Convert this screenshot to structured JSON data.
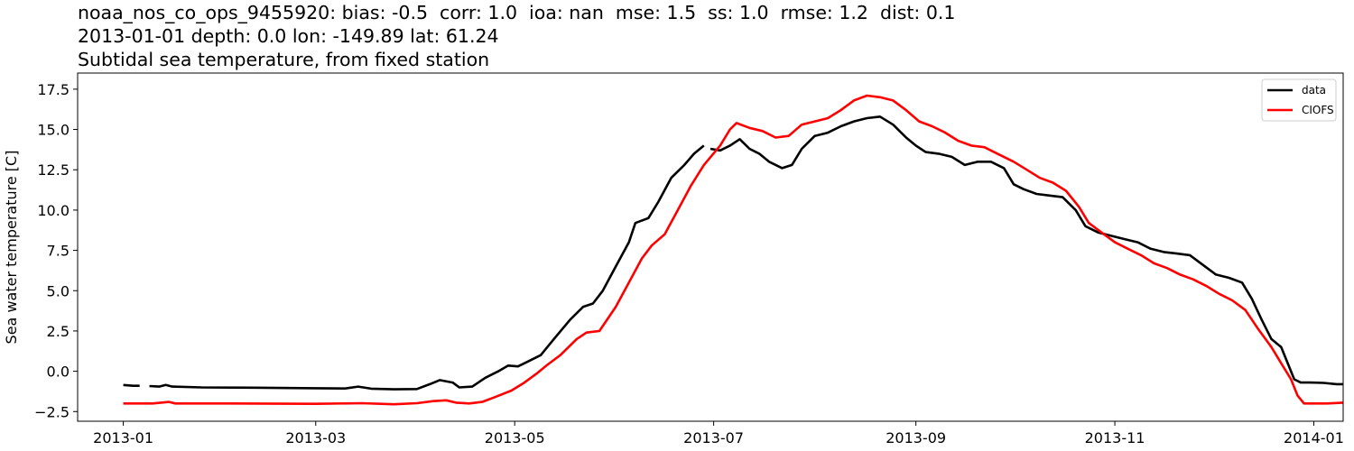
{
  "title_lines": [
    "noaa_nos_co_ops_9455920: bias: -0.5  corr: 1.0  ioa: nan  mse: 1.5  ss: 1.0  rmse: 1.2  dist: 0.1",
    "2013-01-01 depth: 0.0 lon: -149.89 lat: 61.24",
    "Subtidal sea temperature, from fixed station"
  ],
  "chart_data": {
    "type": "line",
    "title": "noaa_nos_co_ops_9455920: bias: -0.5  corr: 1.0  ioa: nan  mse: 1.5  ss: 1.0  rmse: 1.2  dist: 0.1 / 2013-01-01 depth: 0.0 lon: -149.89 lat: 61.24 / Subtidal sea temperature, from fixed station",
    "xlabel": "",
    "ylabel": "Sea water temperature [C]",
    "xlim": [
      "2012-12-18",
      "2014-01-10"
    ],
    "ylim": [
      -3.1,
      18.5
    ],
    "x_ticks": [
      "2013-01-01",
      "2013-03-01",
      "2013-05-01",
      "2013-07-01",
      "2013-09-01",
      "2013-11-01",
      "2014-01-01"
    ],
    "x_tick_labels": [
      "2013-01",
      "2013-03",
      "2013-05",
      "2013-07",
      "2013-09",
      "2013-11",
      "2014-01"
    ],
    "y_ticks": [
      -2.5,
      0.0,
      2.5,
      5.0,
      7.5,
      10.0,
      12.5,
      15.0,
      17.5
    ],
    "y_tick_labels": [
      "−2.5",
      "0.0",
      "2.5",
      "5.0",
      "7.5",
      "10.0",
      "12.5",
      "15.0",
      "17.5"
    ],
    "grid": false,
    "legend_position": "top-right",
    "series": [
      {
        "name": "data",
        "color": "#000000",
        "segments": [
          [
            [
              "2013-01-01",
              -0.85
            ],
            [
              "2013-01-04",
              -0.9
            ],
            [
              "2013-01-06",
              -0.9
            ]
          ],
          [
            [
              "2013-01-09",
              -0.92
            ],
            [
              "2013-01-12",
              -0.95
            ],
            [
              "2013-01-14",
              -0.85
            ],
            [
              "2013-01-16",
              -0.95
            ],
            [
              "2013-01-25",
              -1.0
            ],
            [
              "2013-02-10",
              -1.02
            ],
            [
              "2013-03-01",
              -1.05
            ],
            [
              "2013-03-10",
              -1.07
            ],
            [
              "2013-03-14",
              -0.95
            ],
            [
              "2013-03-18",
              -1.08
            ],
            [
              "2013-03-25",
              -1.12
            ],
            [
              "2013-04-01",
              -1.1
            ],
            [
              "2013-04-05",
              -0.8
            ],
            [
              "2013-04-08",
              -0.55
            ],
            [
              "2013-04-12",
              -0.7
            ],
            [
              "2013-04-14",
              -1.0
            ],
            [
              "2013-04-18",
              -0.95
            ],
            [
              "2013-04-22",
              -0.4
            ],
            [
              "2013-04-26",
              0.0
            ],
            [
              "2013-04-29",
              0.35
            ],
            [
              "2013-05-02",
              0.3
            ],
            [
              "2013-05-05",
              0.6
            ],
            [
              "2013-05-09",
              1.0
            ],
            [
              "2013-05-13",
              2.0
            ],
            [
              "2013-05-18",
              3.2
            ],
            [
              "2013-05-22",
              4.0
            ],
            [
              "2013-05-25",
              4.2
            ],
            [
              "2013-05-28",
              5.0
            ],
            [
              "2013-06-01",
              6.5
            ],
            [
              "2013-06-05",
              8.0
            ],
            [
              "2013-06-07",
              9.2
            ],
            [
              "2013-06-11",
              9.5
            ],
            [
              "2013-06-14",
              10.5
            ],
            [
              "2013-06-18",
              12.0
            ],
            [
              "2013-06-22",
              12.8
            ],
            [
              "2013-06-25",
              13.5
            ],
            [
              "2013-06-28",
              14.0
            ]
          ],
          [
            [
              "2013-06-30",
              13.8
            ],
            [
              "2013-07-03",
              13.7
            ],
            [
              "2013-07-06",
              14.0
            ],
            [
              "2013-07-09",
              14.4
            ],
            [
              "2013-07-12",
              13.8
            ],
            [
              "2013-07-15",
              13.5
            ],
            [
              "2013-07-18",
              13.0
            ],
            [
              "2013-07-22",
              12.6
            ],
            [
              "2013-07-25",
              12.8
            ],
            [
              "2013-07-28",
              13.8
            ],
            [
              "2013-08-01",
              14.6
            ],
            [
              "2013-08-05",
              14.8
            ],
            [
              "2013-08-09",
              15.2
            ],
            [
              "2013-08-13",
              15.5
            ],
            [
              "2013-08-17",
              15.7
            ],
            [
              "2013-08-21",
              15.8
            ],
            [
              "2013-08-25",
              15.3
            ],
            [
              "2013-08-29",
              14.5
            ],
            [
              "2013-09-01",
              14.0
            ],
            [
              "2013-09-04",
              13.6
            ],
            [
              "2013-09-08",
              13.5
            ],
            [
              "2013-09-12",
              13.3
            ],
            [
              "2013-09-16",
              12.8
            ],
            [
              "2013-09-20",
              13.0
            ],
            [
              "2013-09-24",
              13.0
            ],
            [
              "2013-09-28",
              12.6
            ],
            [
              "2013-10-01",
              11.6
            ],
            [
              "2013-10-04",
              11.3
            ],
            [
              "2013-10-08",
              11.0
            ],
            [
              "2013-10-12",
              10.9
            ],
            [
              "2013-10-16",
              10.8
            ],
            [
              "2013-10-20",
              10.0
            ],
            [
              "2013-10-23",
              9.0
            ],
            [
              "2013-10-27",
              8.6
            ],
            [
              "2013-10-31",
              8.4
            ],
            [
              "2013-11-04",
              8.2
            ],
            [
              "2013-11-08",
              8.0
            ],
            [
              "2013-11-12",
              7.6
            ],
            [
              "2013-11-16",
              7.4
            ],
            [
              "2013-11-20",
              7.3
            ],
            [
              "2013-11-24",
              7.2
            ],
            [
              "2013-11-28",
              6.6
            ],
            [
              "2013-12-02",
              6.0
            ],
            [
              "2013-12-06",
              5.8
            ],
            [
              "2013-12-10",
              5.5
            ],
            [
              "2013-12-13",
              4.5
            ],
            [
              "2013-12-16",
              3.2
            ],
            [
              "2013-12-19",
              2.0
            ],
            [
              "2013-12-22",
              1.5
            ],
            [
              "2013-12-24",
              0.5
            ],
            [
              "2013-12-26",
              -0.5
            ],
            [
              "2013-12-28",
              -0.7
            ],
            [
              "2013-12-31",
              -0.7
            ],
            [
              "2014-01-04",
              -0.72
            ],
            [
              "2014-01-08",
              -0.8
            ],
            [
              "2014-01-12",
              -0.8
            ],
            [
              "2014-01-16",
              -0.75
            ],
            [
              "2014-01-22",
              -0.8
            ],
            [
              "2014-01-28",
              -0.82
            ]
          ]
        ]
      },
      {
        "name": "CIOFS",
        "color": "#ff0000",
        "segments": [
          [
            [
              "2013-01-01",
              -2.0
            ],
            [
              "2013-01-10",
              -2.0
            ],
            [
              "2013-01-15",
              -1.9
            ],
            [
              "2013-01-17",
              -2.0
            ],
            [
              "2013-02-01",
              -2.0
            ],
            [
              "2013-03-01",
              -2.02
            ],
            [
              "2013-03-15",
              -1.98
            ],
            [
              "2013-03-25",
              -2.05
            ],
            [
              "2013-04-01",
              -1.98
            ],
            [
              "2013-04-06",
              -1.85
            ],
            [
              "2013-04-10",
              -1.8
            ],
            [
              "2013-04-13",
              -1.95
            ],
            [
              "2013-04-17",
              -2.0
            ],
            [
              "2013-04-21",
              -1.9
            ],
            [
              "2013-04-25",
              -1.6
            ],
            [
              "2013-04-30",
              -1.2
            ],
            [
              "2013-05-04",
              -0.7
            ],
            [
              "2013-05-08",
              -0.1
            ],
            [
              "2013-05-11",
              0.4
            ],
            [
              "2013-05-15",
              1.0
            ],
            [
              "2013-05-20",
              2.0
            ],
            [
              "2013-05-23",
              2.4
            ],
            [
              "2013-05-27",
              2.5
            ],
            [
              "2013-06-01",
              4.0
            ],
            [
              "2013-06-05",
              5.5
            ],
            [
              "2013-06-09",
              7.0
            ],
            [
              "2013-06-12",
              7.8
            ],
            [
              "2013-06-16",
              8.5
            ],
            [
              "2013-06-20",
              10.0
            ],
            [
              "2013-06-24",
              11.5
            ],
            [
              "2013-06-28",
              12.8
            ],
            [
              "2013-07-03",
              14.0
            ],
            [
              "2013-07-06",
              15.0
            ],
            [
              "2013-07-08",
              15.4
            ],
            [
              "2013-07-12",
              15.1
            ],
            [
              "2013-07-16",
              14.9
            ],
            [
              "2013-07-20",
              14.5
            ],
            [
              "2013-07-24",
              14.6
            ],
            [
              "2013-07-28",
              15.3
            ],
            [
              "2013-08-01",
              15.5
            ],
            [
              "2013-08-05",
              15.7
            ],
            [
              "2013-08-09",
              16.2
            ],
            [
              "2013-08-13",
              16.8
            ],
            [
              "2013-08-17",
              17.1
            ],
            [
              "2013-08-21",
              17.0
            ],
            [
              "2013-08-25",
              16.8
            ],
            [
              "2013-08-29",
              16.2
            ],
            [
              "2013-09-02",
              15.5
            ],
            [
              "2013-09-06",
              15.2
            ],
            [
              "2013-09-10",
              14.8
            ],
            [
              "2013-09-14",
              14.3
            ],
            [
              "2013-09-18",
              14.0
            ],
            [
              "2013-09-22",
              13.9
            ],
            [
              "2013-09-26",
              13.5
            ],
            [
              "2013-10-01",
              13.0
            ],
            [
              "2013-10-05",
              12.5
            ],
            [
              "2013-10-09",
              12.0
            ],
            [
              "2013-10-13",
              11.7
            ],
            [
              "2013-10-17",
              11.2
            ],
            [
              "2013-10-21",
              10.2
            ],
            [
              "2013-10-24",
              9.2
            ],
            [
              "2013-10-28",
              8.6
            ],
            [
              "2013-11-01",
              8.0
            ],
            [
              "2013-11-05",
              7.6
            ],
            [
              "2013-11-09",
              7.2
            ],
            [
              "2013-11-13",
              6.7
            ],
            [
              "2013-11-17",
              6.4
            ],
            [
              "2013-11-21",
              6.0
            ],
            [
              "2013-11-25",
              5.7
            ],
            [
              "2013-11-29",
              5.3
            ],
            [
              "2013-12-03",
              4.8
            ],
            [
              "2013-12-07",
              4.4
            ],
            [
              "2013-12-11",
              3.8
            ],
            [
              "2013-12-15",
              2.6
            ],
            [
              "2013-12-19",
              1.5
            ],
            [
              "2013-12-22",
              0.5
            ],
            [
              "2013-12-25",
              -0.5
            ],
            [
              "2013-12-27",
              -1.5
            ],
            [
              "2013-12-29",
              -2.0
            ],
            [
              "2014-01-05",
              -2.0
            ],
            [
              "2014-01-10",
              -1.95
            ],
            [
              "2014-01-14",
              -2.0
            ],
            [
              "2014-01-28",
              -2.0
            ]
          ]
        ]
      }
    ]
  }
}
